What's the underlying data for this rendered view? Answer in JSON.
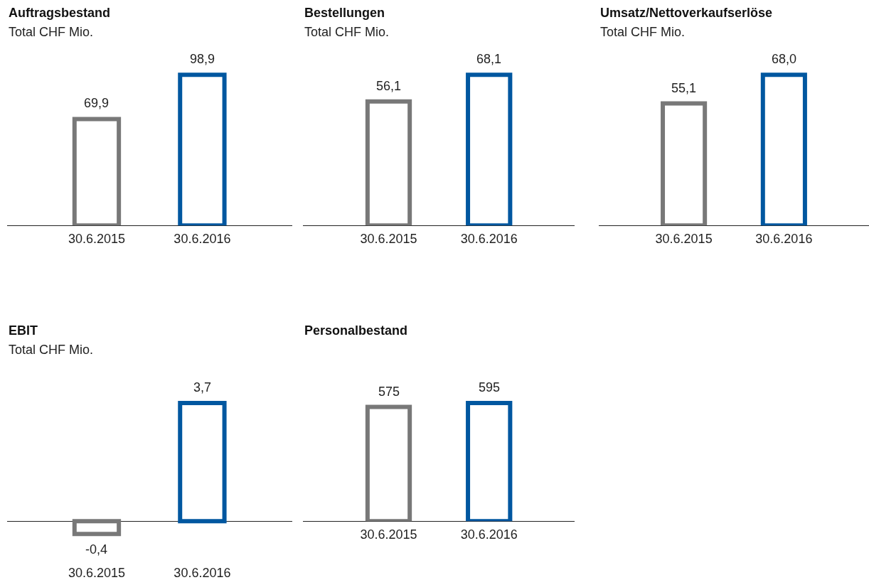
{
  "chart_data": [
    {
      "type": "bar",
      "title": "Auftragsbestand",
      "subtitle": "Total CHF Mio.",
      "categories": [
        "30.6.2015",
        "30.6.2016"
      ],
      "values": [
        69.9,
        98.9
      ],
      "value_labels": [
        "69,9",
        "98,9"
      ],
      "colors": [
        "#787878",
        "#0057a0"
      ]
    },
    {
      "type": "bar",
      "title": "Bestellungen",
      "subtitle": "Total CHF Mio.",
      "categories": [
        "30.6.2015",
        "30.6.2016"
      ],
      "values": [
        56.1,
        68.1
      ],
      "value_labels": [
        "56,1",
        "68,1"
      ],
      "colors": [
        "#787878",
        "#0057a0"
      ]
    },
    {
      "type": "bar",
      "title": "Umsatz/Nettoverkaufserlöse",
      "subtitle": "Total CHF Mio.",
      "categories": [
        "30.6.2015",
        "30.6.2016"
      ],
      "values": [
        55.1,
        68.0
      ],
      "value_labels": [
        "55,1",
        "68,0"
      ],
      "colors": [
        "#787878",
        "#0057a0"
      ]
    },
    {
      "type": "bar",
      "title": "EBIT",
      "subtitle": "Total CHF Mio.",
      "categories": [
        "30.6.2015",
        "30.6.2016"
      ],
      "values": [
        -0.4,
        3.7
      ],
      "value_labels": [
        "-0,4",
        "3,7"
      ],
      "colors": [
        "#787878",
        "#0057a0"
      ]
    },
    {
      "type": "bar",
      "title": "Personalbestand",
      "categories": [
        "30.6.2015",
        "30.6.2016"
      ],
      "values": [
        575,
        595
      ],
      "value_labels": [
        "575",
        "595"
      ],
      "colors": [
        "#787878",
        "#0057a0"
      ]
    }
  ]
}
